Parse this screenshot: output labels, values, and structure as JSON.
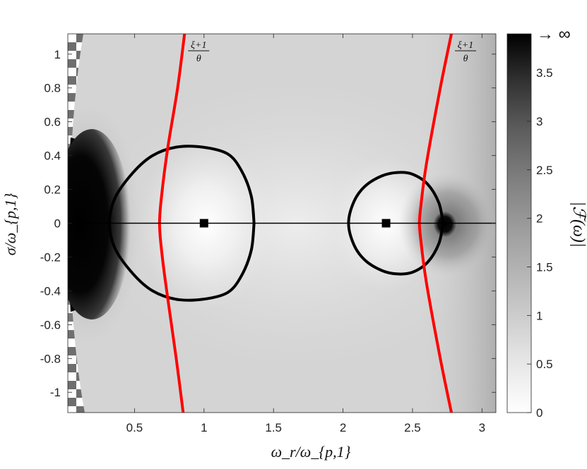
{
  "chart_data": {
    "type": "heatmap",
    "title": "",
    "xlabel": "ω_r/ω_{p,1}",
    "ylabel": "σ/ω_{p,1}",
    "xlim": [
      0.02,
      3.1
    ],
    "ylim": [
      -1.12,
      1.12
    ],
    "x_ticks": [
      {
        "value": 0.5,
        "label": "0.5"
      },
      {
        "value": 1,
        "label": "1"
      },
      {
        "value": 1.5,
        "label": "1.5"
      },
      {
        "value": 2,
        "label": "2"
      },
      {
        "value": 2.5,
        "label": "2.5"
      },
      {
        "value": 3,
        "label": "3"
      }
    ],
    "y_ticks": [
      {
        "value": 1,
        "label": "1"
      },
      {
        "value": 0.8,
        "label": "0.8"
      },
      {
        "value": 0.6,
        "label": "0.6"
      },
      {
        "value": 0.4,
        "label": "0.4"
      },
      {
        "value": 0.2,
        "label": "0.2"
      },
      {
        "value": 0,
        "label": "0"
      },
      {
        "value": -0.2,
        "label": "-0.2"
      },
      {
        "value": -0.4,
        "label": "-0.4"
      },
      {
        "value": -0.6,
        "label": "-0.6"
      },
      {
        "value": -0.8,
        "label": "-0.8"
      },
      {
        "value": -1,
        "label": "-1"
      }
    ],
    "colorbar": {
      "label": "|ℱ(ω)|",
      "top_label": "→ ∞",
      "range": [
        0,
        3.9
      ],
      "ticks": [
        {
          "value": 0,
          "label": "0"
        },
        {
          "value": 0.5,
          "label": "0.5"
        },
        {
          "value": 1,
          "label": "1"
        },
        {
          "value": 1.5,
          "label": "1.5"
        },
        {
          "value": 2,
          "label": "2"
        },
        {
          "value": 2.5,
          "label": "2.5"
        },
        {
          "value": 3,
          "label": "3"
        },
        {
          "value": 3.5,
          "label": "3.5"
        }
      ],
      "colormap": "gray (white = 0, black = high)"
    },
    "markers": [
      {
        "shape": "square",
        "x": 1.0,
        "y": 0.0,
        "color": "#000000"
      },
      {
        "shape": "square",
        "x": 2.31,
        "y": 0.0,
        "color": "#000000"
      }
    ],
    "curves": [
      {
        "kind": "contour",
        "color": "#000000",
        "points": [
          [
            1.36,
            0
          ],
          [
            1.34,
            0.16
          ],
          [
            1.27,
            0.31
          ],
          [
            1.17,
            0.41
          ],
          [
            0.99,
            0.45
          ],
          [
            0.8,
            0.45
          ],
          [
            0.63,
            0.4
          ],
          [
            0.49,
            0.3
          ],
          [
            0.36,
            0.15
          ],
          [
            0.32,
            0
          ],
          [
            0.36,
            -0.15
          ],
          [
            0.49,
            -0.3
          ],
          [
            0.63,
            -0.4
          ],
          [
            0.8,
            -0.45
          ],
          [
            0.99,
            -0.45
          ],
          [
            1.17,
            -0.41
          ],
          [
            1.27,
            -0.31
          ],
          [
            1.34,
            -0.16
          ],
          [
            1.36,
            0
          ]
        ]
      },
      {
        "kind": "contour",
        "color": "#000000",
        "points": [
          [
            2.72,
            0
          ],
          [
            2.69,
            0.12
          ],
          [
            2.61,
            0.23
          ],
          [
            2.5,
            0.29
          ],
          [
            2.39,
            0.3
          ],
          [
            2.28,
            0.28
          ],
          [
            2.16,
            0.22
          ],
          [
            2.08,
            0.13
          ],
          [
            2.04,
            0
          ],
          [
            2.08,
            -0.13
          ],
          [
            2.16,
            -0.22
          ],
          [
            2.28,
            -0.28
          ],
          [
            2.39,
            -0.3
          ],
          [
            2.5,
            -0.29
          ],
          [
            2.61,
            -0.23
          ],
          [
            2.69,
            -0.12
          ],
          [
            2.72,
            0
          ]
        ]
      },
      {
        "kind": "line",
        "label": "ξ+1 / θ",
        "label_position": "top",
        "color": "#ff0000",
        "points": [
          [
            0.86,
            1.12
          ],
          [
            0.81,
            0.8
          ],
          [
            0.74,
            0.45
          ],
          [
            0.7,
            0.2
          ],
          [
            0.68,
            0
          ],
          [
            0.7,
            -0.2
          ],
          [
            0.74,
            -0.45
          ],
          [
            0.8,
            -0.8
          ],
          [
            0.85,
            -1.12
          ]
        ]
      },
      {
        "kind": "line",
        "label": "ξ+1 / θ",
        "label_position": "top",
        "color": "#ff0000",
        "points": [
          [
            2.78,
            1.12
          ],
          [
            2.7,
            0.8
          ],
          [
            2.6,
            0.35
          ],
          [
            2.56,
            0.1
          ],
          [
            2.55,
            0
          ],
          [
            2.56,
            -0.1
          ],
          [
            2.6,
            -0.35
          ],
          [
            2.7,
            -0.8
          ],
          [
            2.78,
            -1.12
          ]
        ]
      },
      {
        "kind": "line",
        "label": "",
        "color": "#000000",
        "points": [
          [
            0.02,
            0
          ],
          [
            3.1,
            0
          ]
        ]
      }
    ],
    "features": [
      {
        "kind": "singularity",
        "x": 0.18,
        "y": 0,
        "description": "black lobe along left edge"
      },
      {
        "kind": "pole",
        "x": 2.73,
        "y": 0,
        "description": "small black spot"
      },
      {
        "kind": "minimum",
        "x": 1.0,
        "y": 0
      },
      {
        "kind": "minimum",
        "x": 2.31,
        "y": 0
      },
      {
        "kind": "undefined-region",
        "description": "checkerboard area at far left"
      }
    ],
    "grid": false,
    "legend": "none"
  }
}
